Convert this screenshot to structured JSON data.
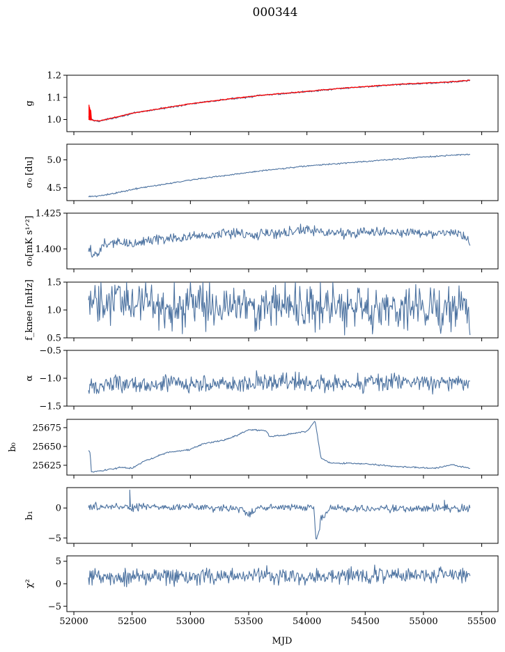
{
  "title": "000344",
  "colors": {
    "series": "#4c72a0",
    "fit": "#ff0000",
    "axis": "#000000"
  },
  "chart_data": {
    "type": "line",
    "title": "000344",
    "xlabel": "MJD",
    "xlim": [
      51940,
      55640
    ],
    "xticks": [
      52000,
      52500,
      53000,
      53500,
      54000,
      54500,
      55000,
      55500
    ],
    "xtick_labels": [
      "52000",
      "52500",
      "53000",
      "53500",
      "54000",
      "54500",
      "55000",
      "55500"
    ],
    "x_start": 52125,
    "x_end": 55400,
    "panels": [
      {
        "id": "g",
        "ylabel": "g",
        "ylim": [
          0.945,
          1.2
        ],
        "yticks": [
          1.0,
          1.1,
          1.2
        ],
        "ytick_labels": [
          "1.0",
          "1.1",
          "1.2"
        ],
        "series": [
          {
            "style": "series",
            "noise": 0.002,
            "points": [
              [
                52125,
                1.01
              ],
              [
                52170,
                0.995
              ],
              [
                52220,
                0.993
              ],
              [
                52300,
                1.002
              ],
              [
                52500,
                1.027
              ],
              [
                52700,
                1.045
              ],
              [
                53000,
                1.07
              ],
              [
                53300,
                1.09
              ],
              [
                53600,
                1.108
              ],
              [
                54000,
                1.126
              ],
              [
                54300,
                1.14
              ],
              [
                54500,
                1.148
              ],
              [
                54800,
                1.158
              ],
              [
                55000,
                1.163
              ],
              [
                55200,
                1.168
              ],
              [
                55400,
                1.176
              ],
              [
                55460,
                1.176
              ]
            ]
          },
          {
            "style": "fit",
            "noise": 0.001,
            "points": [
              [
                52125,
                1.0
              ],
              [
                52170,
                0.996
              ],
              [
                52220,
                0.994
              ],
              [
                52300,
                1.003
              ],
              [
                52500,
                1.028
              ],
              [
                52700,
                1.046
              ],
              [
                53000,
                1.071
              ],
              [
                53300,
                1.091
              ],
              [
                53600,
                1.109
              ],
              [
                54000,
                1.127
              ],
              [
                54300,
                1.141
              ],
              [
                54500,
                1.149
              ],
              [
                54800,
                1.159
              ],
              [
                55000,
                1.164
              ],
              [
                55200,
                1.169
              ],
              [
                55400,
                1.177
              ],
              [
                55460,
                1.177
              ]
            ],
            "spikes": [
              [
                52130,
                1.065
              ],
              [
                52135,
                1.055
              ],
              [
                52140,
                1.045
              ],
              [
                52145,
                1.04
              ]
            ]
          }
        ]
      },
      {
        "id": "sigma0",
        "ylabel": "σ₀ [du]",
        "ylim": [
          4.27,
          5.28
        ],
        "yticks": [
          4.5,
          5.0
        ],
        "ytick_labels": [
          "4.5",
          "5.0"
        ],
        "series": [
          {
            "style": "series",
            "noise": 0.006,
            "points": [
              [
                52200,
                4.35
              ],
              [
                52300,
                4.38
              ],
              [
                52500,
                4.47
              ],
              [
                52700,
                4.54
              ],
              [
                53000,
                4.64
              ],
              [
                53300,
                4.72
              ],
              [
                53600,
                4.8
              ],
              [
                54000,
                4.89
              ],
              [
                54500,
                4.97
              ],
              [
                55000,
                5.05
              ],
              [
                55400,
                5.1
              ]
            ]
          }
        ]
      },
      {
        "id": "sigma0r",
        "ylabel": "σ₀[mK s¹ᐟ²]",
        "ylim": [
          1.386,
          1.425
        ],
        "yticks": [
          1.4,
          1.425
        ],
        "ytick_labels": [
          "1.400",
          "1.425"
        ],
        "series": [
          {
            "style": "series",
            "noise": 0.0018,
            "points": [
              [
                52150,
                1.398
              ],
              [
                52200,
                1.395
              ],
              [
                52250,
                1.403
              ],
              [
                52400,
                1.405
              ],
              [
                52500,
                1.403
              ],
              [
                52700,
                1.407
              ],
              [
                53000,
                1.408
              ],
              [
                53300,
                1.411
              ],
              [
                53500,
                1.41
              ],
              [
                53700,
                1.411
              ],
              [
                54000,
                1.413
              ],
              [
                54300,
                1.411
              ],
              [
                54600,
                1.412
              ],
              [
                55000,
                1.411
              ],
              [
                55300,
                1.411
              ],
              [
                55400,
                1.405
              ]
            ]
          }
        ]
      },
      {
        "id": "fknee",
        "ylabel": "f_knee [mHz]",
        "ylim": [
          0.5,
          1.5
        ],
        "yticks": [
          0.5,
          1.0,
          1.5
        ],
        "ytick_labels": [
          "0.5",
          "1.0",
          "1.5"
        ],
        "series": [
          {
            "style": "series",
            "noise": 0.2,
            "clip": true,
            "points": [
              [
                52125,
                1.1
              ],
              [
                52500,
                1.12
              ],
              [
                53000,
                1.08
              ],
              [
                53500,
                1.1
              ],
              [
                54000,
                1.05
              ],
              [
                54500,
                1.06
              ],
              [
                55000,
                1.02
              ],
              [
                55380,
                1.0
              ],
              [
                55400,
                0.65
              ]
            ]
          }
        ]
      },
      {
        "id": "alpha",
        "ylabel": "α",
        "ylim": [
          -1.5,
          -0.5
        ],
        "yticks": [
          -1.5,
          -1.0,
          -0.5
        ],
        "ytick_labels": [
          "−1.5",
          "−1.0",
          "−0.5"
        ],
        "series": [
          {
            "style": "series",
            "noise": 0.08,
            "points": [
              [
                52125,
                -1.12
              ],
              [
                53000,
                -1.1
              ],
              [
                54000,
                -1.08
              ],
              [
                55400,
                -1.07
              ]
            ]
          }
        ]
      },
      {
        "id": "b0",
        "ylabel": "b₀",
        "ylim": [
          25612,
          25686
        ],
        "yticks": [
          25625,
          25650,
          25675
        ],
        "ytick_labels": [
          "25625",
          "25650",
          "25675"
        ],
        "series": [
          {
            "style": "series",
            "noise": 0.5,
            "points": [
              [
                52125,
                25644
              ],
              [
                52140,
                25642
              ],
              [
                52150,
                25616
              ],
              [
                52250,
                25618
              ],
              [
                52400,
                25622
              ],
              [
                52500,
                25621
              ],
              [
                52600,
                25630
              ],
              [
                52800,
                25642
              ],
              [
                53000,
                25646
              ],
              [
                53100,
                25653
              ],
              [
                53300,
                25659
              ],
              [
                53400,
                25665
              ],
              [
                53500,
                25672
              ],
              [
                53650,
                25671
              ],
              [
                53680,
                25663
              ],
              [
                53800,
                25665
              ],
              [
                53950,
                25669
              ],
              [
                54000,
                25670
              ],
              [
                54070,
                25684
              ],
              [
                54120,
                25635
              ],
              [
                54200,
                25628
              ],
              [
                54500,
                25627
              ],
              [
                54800,
                25623
              ],
              [
                55100,
                25621
              ],
              [
                55250,
                25626
              ],
              [
                55300,
                25624
              ],
              [
                55400,
                25621
              ]
            ]
          }
        ]
      },
      {
        "id": "b1",
        "ylabel": "b₁",
        "ylim": [
          -5.9,
          3.4
        ],
        "yticks": [
          -5,
          0
        ],
        "ytick_labels": [
          "−5",
          "0"
        ],
        "series": [
          {
            "style": "series",
            "noise": 0.3,
            "points": [
              [
                52125,
                0.2
              ],
              [
                53000,
                0.1
              ],
              [
                53450,
                -0.2
              ],
              [
                53500,
                -1.2
              ],
              [
                53600,
                0.1
              ],
              [
                54000,
                0.2
              ],
              [
                54060,
                -0.2
              ],
              [
                54080,
                -5.5
              ],
              [
                54120,
                -2.0
              ],
              [
                54200,
                -0.2
              ],
              [
                55400,
                0.0
              ]
            ],
            "spikes": [
              [
                52480,
                3.0
              ],
              [
                55180,
                1.3
              ]
            ]
          }
        ]
      },
      {
        "id": "chi2",
        "ylabel": "χ²",
        "ylim": [
          -6.2,
          6.2
        ],
        "yticks": [
          -5,
          0,
          5
        ],
        "ytick_labels": [
          "−5",
          "0",
          "5"
        ],
        "series": [
          {
            "style": "series",
            "noise": 0.9,
            "points": [
              [
                52125,
                1.5
              ],
              [
                53000,
                1.6
              ],
              [
                54000,
                1.8
              ],
              [
                55400,
                1.9
              ]
            ]
          }
        ]
      }
    ]
  }
}
